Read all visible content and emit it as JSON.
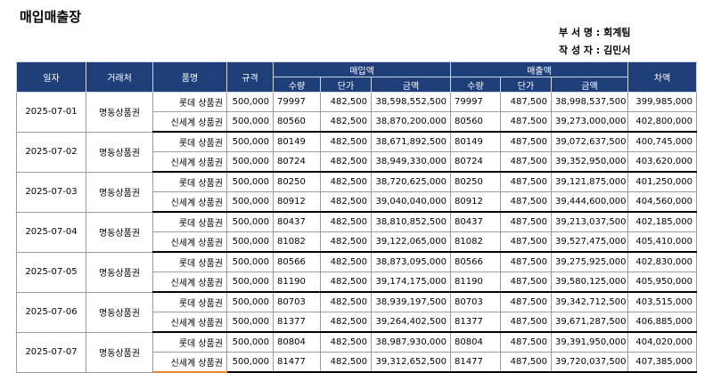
{
  "title": "매입매출장",
  "meta": {
    "dept_label": "부 서 명 :",
    "dept_value": "회계팀",
    "author_label": "작 성 자 :",
    "author_value": "김민서"
  },
  "headers": {
    "date": "일자",
    "vendor": "거래처",
    "item": "품명",
    "spec": "규격",
    "purchase": "매입액",
    "sales": "매출액",
    "diff": "차액",
    "qty": "수량",
    "unit": "단가",
    "amount": "금액"
  },
  "groups": [
    {
      "date": "2025-07-01",
      "vendor": "명동상품권",
      "rows": [
        {
          "item": "롯데 상품권",
          "spec": "500,000",
          "p_qty": "79997",
          "p_unit": "482,500",
          "p_amt": "38,598,552,500",
          "s_qty": "79997",
          "s_unit": "487,500",
          "s_amt": "38,998,537,500",
          "diff": "399,985,000"
        },
        {
          "item": "신세계 상품권",
          "spec": "500,000",
          "p_qty": "80560",
          "p_unit": "482,500",
          "p_amt": "38,870,200,000",
          "s_qty": "80560",
          "s_unit": "487,500",
          "s_amt": "39,273,000,000",
          "diff": "402,800,000"
        }
      ]
    },
    {
      "date": "2025-07-02",
      "vendor": "명동상품권",
      "rows": [
        {
          "item": "롯데 상품권",
          "spec": "500,000",
          "p_qty": "80149",
          "p_unit": "482,500",
          "p_amt": "38,671,892,500",
          "s_qty": "80149",
          "s_unit": "487,500",
          "s_amt": "39,072,637,500",
          "diff": "400,745,000"
        },
        {
          "item": "신세계 상품권",
          "spec": "500,000",
          "p_qty": "80724",
          "p_unit": "482,500",
          "p_amt": "38,949,330,000",
          "s_qty": "80724",
          "s_unit": "487,500",
          "s_amt": "39,352,950,000",
          "diff": "403,620,000"
        }
      ]
    },
    {
      "date": "2025-07-03",
      "vendor": "명동상품권",
      "rows": [
        {
          "item": "롯데 상품권",
          "spec": "500,000",
          "p_qty": "80250",
          "p_unit": "482,500",
          "p_amt": "38,720,625,000",
          "s_qty": "80250",
          "s_unit": "487,500",
          "s_amt": "39,121,875,000",
          "diff": "401,250,000"
        },
        {
          "item": "신세계 상품권",
          "spec": "500,000",
          "p_qty": "80912",
          "p_unit": "482,500",
          "p_amt": "39,040,040,000",
          "s_qty": "80912",
          "s_unit": "487,500",
          "s_amt": "39,444,600,000",
          "diff": "404,560,000"
        }
      ]
    },
    {
      "date": "2025-07-04",
      "vendor": "명동상품권",
      "rows": [
        {
          "item": "롯데 상품권",
          "spec": "500,000",
          "p_qty": "80437",
          "p_unit": "482,500",
          "p_amt": "38,810,852,500",
          "s_qty": "80437",
          "s_unit": "487,500",
          "s_amt": "39,213,037,500",
          "diff": "402,185,000"
        },
        {
          "item": "신세계 상품권",
          "spec": "500,000",
          "p_qty": "81082",
          "p_unit": "482,500",
          "p_amt": "39,122,065,000",
          "s_qty": "81082",
          "s_unit": "487,500",
          "s_amt": "39,527,475,000",
          "diff": "405,410,000"
        }
      ]
    },
    {
      "date": "2025-07-05",
      "vendor": "명동상품권",
      "rows": [
        {
          "item": "롯데 상품권",
          "spec": "500,000",
          "p_qty": "80566",
          "p_unit": "482,500",
          "p_amt": "38,873,095,000",
          "s_qty": "80566",
          "s_unit": "487,500",
          "s_amt": "39,275,925,000",
          "diff": "402,830,000"
        },
        {
          "item": "신세계 상품권",
          "spec": "500,000",
          "p_qty": "81190",
          "p_unit": "482,500",
          "p_amt": "39,174,175,000",
          "s_qty": "81190",
          "s_unit": "487,500",
          "s_amt": "39,580,125,000",
          "diff": "405,950,000"
        }
      ]
    },
    {
      "date": "2025-07-06",
      "vendor": "명동상품권",
      "rows": [
        {
          "item": "롯데 상품권",
          "spec": "500,000",
          "p_qty": "80703",
          "p_unit": "482,500",
          "p_amt": "38,939,197,500",
          "s_qty": "80703",
          "s_unit": "487,500",
          "s_amt": "39,342,712,500",
          "diff": "403,515,000"
        },
        {
          "item": "신세계 상품권",
          "spec": "500,000",
          "p_qty": "81377",
          "p_unit": "482,500",
          "p_amt": "39,264,402,500",
          "s_qty": "81377",
          "s_unit": "487,500",
          "s_amt": "39,671,287,500",
          "diff": "406,885,000"
        }
      ]
    },
    {
      "date": "2025-07-07",
      "vendor": "명동상품권",
      "rows": [
        {
          "item": "롯데 상품권",
          "spec": "500,000",
          "p_qty": "80804",
          "p_unit": "482,500",
          "p_amt": "38,987,930,000",
          "s_qty": "80804",
          "s_unit": "487,500",
          "s_amt": "39,391,950,000",
          "diff": "404,020,000"
        },
        {
          "item": "신세계 상품권",
          "spec": "500,000",
          "p_qty": "81477",
          "p_unit": "482,500",
          "p_amt": "39,312,652,500",
          "s_qty": "81477",
          "s_unit": "487,500",
          "s_amt": "39,720,037,500",
          "diff": "407,385,000"
        }
      ]
    }
  ]
}
